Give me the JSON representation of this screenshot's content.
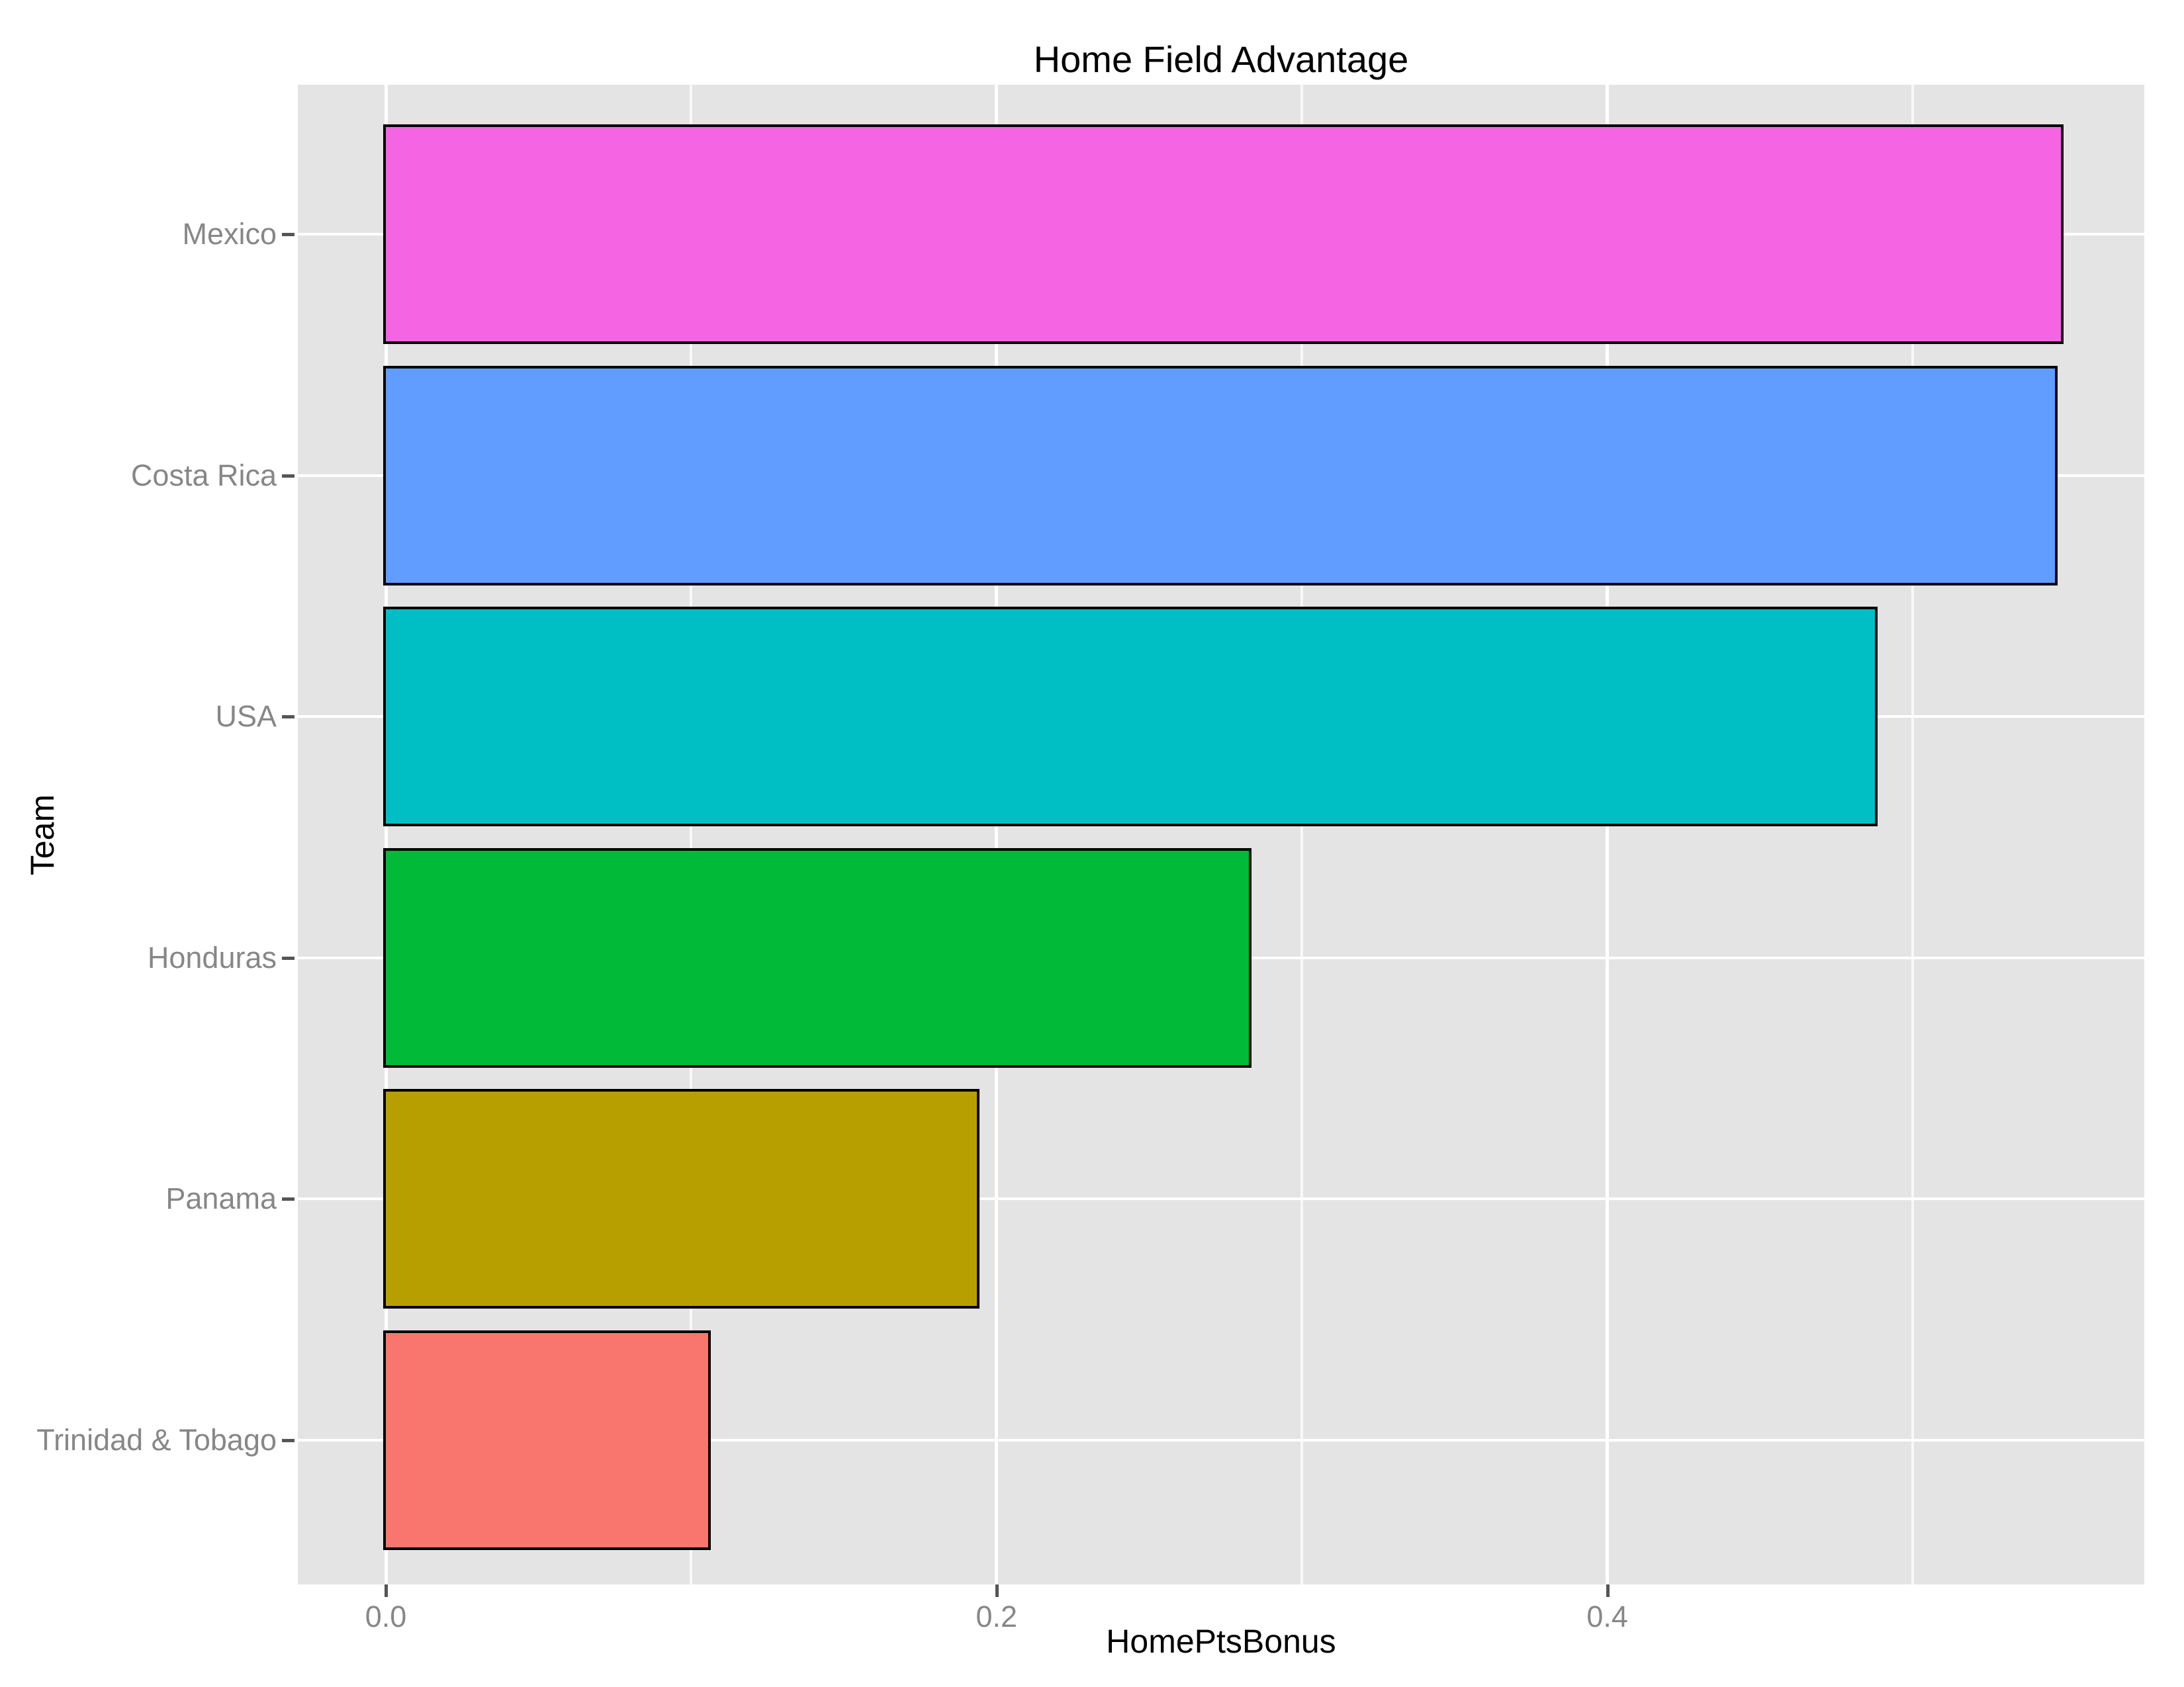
{
  "chart_data": {
    "type": "bar",
    "orientation": "horizontal",
    "title": "Home Field Advantage",
    "xlabel": "HomePtsBonus",
    "ylabel": "Team",
    "categories": [
      "Mexico",
      "Costa Rica",
      "USA",
      "Honduras",
      "Panama",
      "Trinidad & Tobago"
    ],
    "values": [
      0.549,
      0.547,
      0.488,
      0.283,
      0.194,
      0.106
    ],
    "bar_colors": [
      "#F564E3",
      "#619CFF",
      "#00BFC4",
      "#00BA38",
      "#B79F00",
      "#F8766D"
    ],
    "x_major_ticks": [
      0.0,
      0.2,
      0.4
    ],
    "x_tick_labels": [
      "0.0",
      "0.2",
      "0.4"
    ],
    "x_minor_ticks": [
      0.1,
      0.3,
      0.5
    ],
    "x_range": [
      -0.029,
      0.576
    ],
    "grid": true,
    "legend": false,
    "colors": {
      "page_bg": "#FFFFFF",
      "panel_bg": "#E4E4E4",
      "grid_major": "#FFFFFF",
      "grid_minor": "#FFFFFF",
      "bar_outline": "#000000",
      "tick_mark": "#555555",
      "tick_label": "#878787",
      "text": "#000000"
    }
  }
}
